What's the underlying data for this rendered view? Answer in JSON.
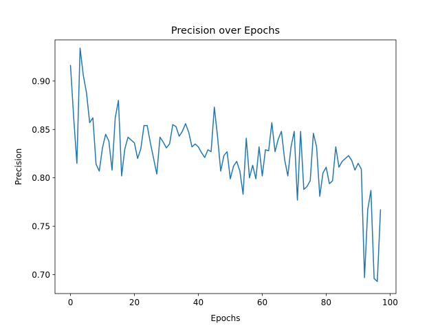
{
  "chart_data": {
    "type": "line",
    "title": "Precision over Epochs",
    "xlabel": "Epochs",
    "ylabel": "Precision",
    "xlim": [
      -4.85,
      101.85
    ],
    "ylim": [
      0.6805,
      0.9425
    ],
    "xticks": [
      0,
      20,
      40,
      60,
      80,
      100
    ],
    "xtick_labels": [
      "0",
      "20",
      "40",
      "60",
      "80",
      "100"
    ],
    "yticks": [
      0.7,
      0.75,
      0.8,
      0.85,
      0.9
    ],
    "ytick_labels": [
      "0.70",
      "0.75",
      "0.80",
      "0.85",
      "0.90"
    ],
    "grid": false,
    "series": [
      {
        "name": "Precision",
        "color": "#1f77b4",
        "x": [
          0,
          1,
          2,
          3,
          4,
          5,
          6,
          7,
          8,
          9,
          10,
          11,
          12,
          13,
          14,
          15,
          16,
          17,
          18,
          19,
          20,
          21,
          22,
          23,
          24,
          25,
          26,
          27,
          28,
          29,
          30,
          31,
          32,
          33,
          34,
          35,
          36,
          37,
          38,
          39,
          40,
          41,
          42,
          43,
          44,
          45,
          46,
          47,
          48,
          49,
          50,
          51,
          52,
          53,
          54,
          55,
          56,
          57,
          58,
          59,
          60,
          61,
          62,
          63,
          64,
          65,
          66,
          67,
          68,
          69,
          70,
          71,
          72,
          73,
          74,
          75,
          76,
          77,
          78,
          79,
          80,
          81,
          82,
          83,
          84,
          85,
          86,
          87,
          88,
          89,
          90,
          91,
          92,
          93,
          94,
          95,
          96,
          97
        ],
        "values": [
          0.916,
          0.862,
          0.815,
          0.934,
          0.906,
          0.888,
          0.857,
          0.862,
          0.814,
          0.807,
          0.831,
          0.845,
          0.838,
          0.808,
          0.862,
          0.88,
          0.802,
          0.83,
          0.842,
          0.839,
          0.836,
          0.82,
          0.83,
          0.854,
          0.854,
          0.836,
          0.82,
          0.804,
          0.842,
          0.837,
          0.831,
          0.835,
          0.855,
          0.853,
          0.843,
          0.848,
          0.856,
          0.847,
          0.832,
          0.835,
          0.832,
          0.826,
          0.821,
          0.829,
          0.827,
          0.873,
          0.843,
          0.807,
          0.823,
          0.827,
          0.799,
          0.812,
          0.817,
          0.807,
          0.783,
          0.841,
          0.8,
          0.813,
          0.799,
          0.832,
          0.802,
          0.829,
          0.828,
          0.857,
          0.827,
          0.84,
          0.848,
          0.819,
          0.802,
          0.832,
          0.848,
          0.777,
          0.848,
          0.788,
          0.791,
          0.797,
          0.846,
          0.832,
          0.781,
          0.805,
          0.811,
          0.794,
          0.797,
          0.832,
          0.811,
          0.817,
          0.82,
          0.823,
          0.818,
          0.808,
          0.815,
          0.809,
          0.697,
          0.767,
          0.787,
          0.696,
          0.693,
          0.767
        ]
      }
    ]
  }
}
